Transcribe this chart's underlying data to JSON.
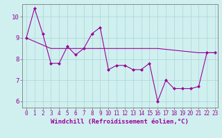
{
  "xlabel": "Windchill (Refroidissement éolien,°C)",
  "ylabel": "",
  "background_color": "#d0f0f0",
  "line_color": "#990099",
  "grid_color": "#b0d8d8",
  "xlim": [
    -0.5,
    23.3
  ],
  "ylim": [
    5.7,
    10.6
  ],
  "yticks": [
    6,
    7,
    8,
    9,
    10
  ],
  "xticks": [
    0,
    1,
    2,
    3,
    4,
    5,
    6,
    7,
    8,
    9,
    10,
    11,
    12,
    13,
    14,
    15,
    16,
    17,
    18,
    19,
    20,
    21,
    22,
    23
  ],
  "line1_x": [
    0,
    1,
    2,
    3,
    4,
    5,
    6,
    7,
    8,
    9,
    10,
    11,
    12,
    13,
    14,
    15,
    16,
    17,
    18,
    19,
    20,
    21,
    22,
    23
  ],
  "line1_y": [
    9.0,
    10.4,
    9.2,
    7.8,
    7.8,
    8.6,
    8.2,
    8.5,
    9.2,
    9.5,
    7.5,
    7.7,
    7.7,
    7.5,
    7.5,
    7.8,
    6.0,
    7.0,
    6.6,
    6.6,
    6.6,
    6.7,
    8.3,
    8.3
  ],
  "line2_x": [
    0,
    3,
    7,
    10,
    14,
    16,
    21,
    23
  ],
  "line2_y": [
    9.0,
    8.5,
    8.5,
    8.5,
    8.5,
    8.5,
    8.3,
    8.3
  ],
  "fontsize_label": 6.5,
  "fontsize_tick": 5.5
}
